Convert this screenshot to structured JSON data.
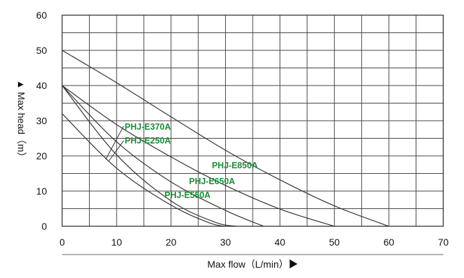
{
  "chart_data": {
    "type": "line",
    "xlabel": "Max flow（L/min）▶",
    "ylabel": "▲ Max head（m）",
    "xlim": [
      0,
      70
    ],
    "ylim": [
      0,
      60
    ],
    "x_ticks": [
      "0",
      "10",
      "20",
      "30",
      "40",
      "50",
      "60",
      "70"
    ],
    "y_ticks": [
      "0",
      "10",
      "20",
      "30",
      "40",
      "50",
      "60"
    ],
    "grid": true,
    "minor_y_step": 5,
    "minor_x_step": 5,
    "colors": {
      "curve": "#333333",
      "label": "#1f8a3a",
      "grid": "#444444"
    },
    "series": [
      {
        "name": "PHJ-E370A",
        "x": [
          0,
          10,
          20,
          30,
          40,
          50,
          60
        ],
        "y": [
          50,
          40.8,
          31.1,
          21.6,
          13.2,
          5.8,
          0
        ]
      },
      {
        "name": "PHJ-E250A",
        "x": [
          0,
          10,
          20,
          30,
          40,
          50
        ],
        "y": [
          40,
          28.9,
          19.7,
          11.6,
          4.9,
          0
        ]
      },
      {
        "name": "PHJ-E850A",
        "x": [
          0,
          10,
          20,
          30,
          37
        ],
        "y": [
          40,
          24,
          12.6,
          4.5,
          0
        ]
      },
      {
        "name": "PHJ-E650A",
        "x": [
          0,
          10,
          20,
          28,
          32
        ],
        "y": [
          40,
          20.3,
          7.2,
          1.2,
          0
        ]
      },
      {
        "name": "PHJ-E550A",
        "x": [
          0,
          10,
          20,
          27,
          30
        ],
        "y": [
          32,
          16.5,
          6,
          1,
          0
        ]
      }
    ],
    "labels": [
      {
        "text": "PHJ-E370A",
        "x": 11.5,
        "y": 27.5
      },
      {
        "text": "PHJ-E250A",
        "x": 11.5,
        "y": 23.5
      },
      {
        "text": "PHJ-E850A",
        "x": 27.5,
        "y": 16.5
      },
      {
        "text": "PHJ-E650A",
        "x": 23.3,
        "y": 12.0
      },
      {
        "text": "PHJ-E550A",
        "x": 18.8,
        "y": 8.0
      }
    ]
  }
}
